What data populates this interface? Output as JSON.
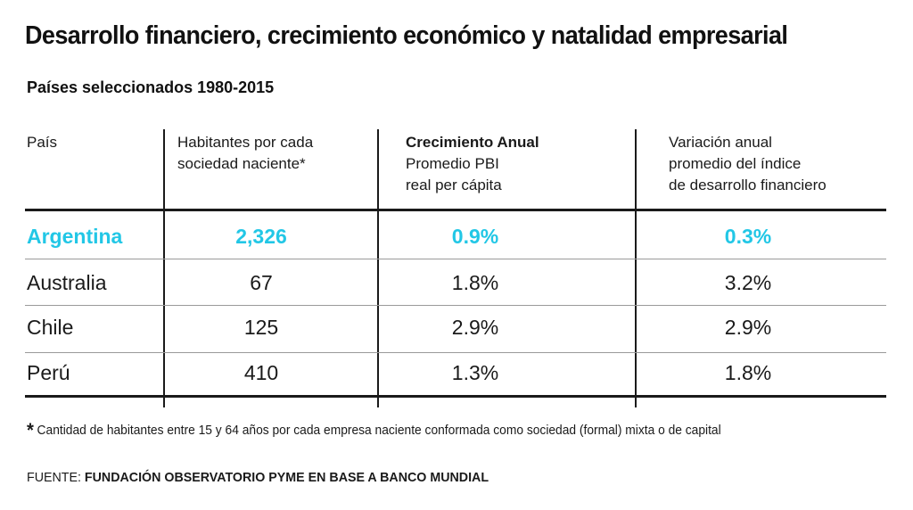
{
  "title": "Desarrollo financiero, crecimiento económico y natalidad empresarial",
  "subtitle": "Países seleccionados 1980-2015",
  "accent_color": "#22c7e6",
  "chart_data": {
    "type": "table",
    "columns": [
      {
        "lines": [
          "País"
        ]
      },
      {
        "lines": [
          "Habitantes por cada",
          "sociedad naciente*"
        ]
      },
      {
        "lines": [
          "Crecimiento Anual",
          "Promedio PBI",
          "real per cápita"
        ]
      },
      {
        "lines": [
          "Variación anual",
          "promedio del índice",
          "de desarrollo financiero"
        ]
      }
    ],
    "rows": [
      {
        "country": "Argentina",
        "habitantes": "2,326",
        "crecimiento": "0.9%",
        "variacion": "0.3%",
        "highlight": true
      },
      {
        "country": "Australia",
        "habitantes": "67",
        "crecimiento": "1.8%",
        "variacion": "3.2%",
        "highlight": false
      },
      {
        "country": "Chile",
        "habitantes": "125",
        "crecimiento": "2.9%",
        "variacion": "2.9%",
        "highlight": false
      },
      {
        "country": "Perú",
        "habitantes": "410",
        "crecimiento": "1.3%",
        "variacion": "1.8%",
        "highlight": false
      }
    ]
  },
  "footnote": {
    "marker": "*",
    "text": "Cantidad de habitantes entre 15 y 64 años por cada empresa naciente conformada como sociedad (formal) mixta o de capital"
  },
  "source": {
    "label": "FUENTE: ",
    "name": "FUNDACIÓN OBSERVATORIO PYME EN BASE A BANCO MUNDIAL"
  }
}
